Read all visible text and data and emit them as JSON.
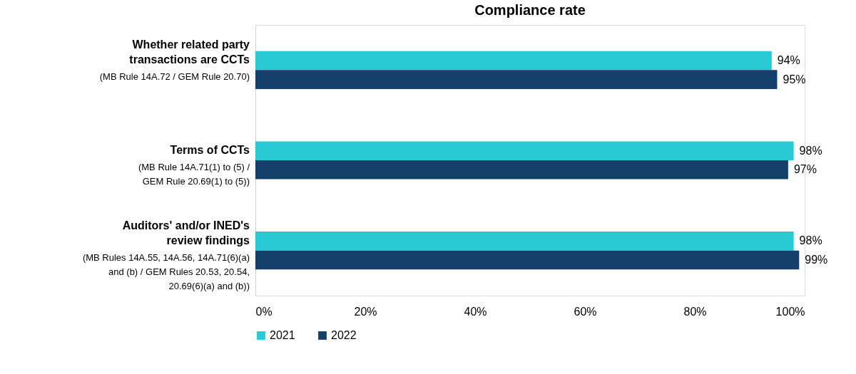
{
  "chart_data": {
    "type": "bar",
    "orientation": "horizontal",
    "title": "Compliance rate",
    "categories": [
      "Whether related party\ntransactions are CCTs",
      "Terms of CCTs",
      "Auditors' and/or INED's\nreview findings"
    ],
    "annotations": [
      "(MB Rule 14A.72 / GEM Rule 20.70)",
      "(MB Rule 14A.71(1) to (5) /\nGEM Rule 20.69(1) to (5))",
      "(MB Rules 14A.55, 14A.56, 14A.71(6)(a)\nand (b) / GEM Rules 20.53, 20.54,\n20.69(6)(a) and (b))"
    ],
    "series": [
      {
        "name": "2021",
        "color": "#29cad3",
        "values": [
          94,
          98,
          98
        ],
        "value_labels": [
          "94%",
          "98%",
          "98%"
        ]
      },
      {
        "name": "2022",
        "color": "#15406a",
        "values": [
          95,
          97,
          99
        ],
        "value_labels": [
          "95%",
          "97%",
          "99%"
        ]
      }
    ],
    "xlim": [
      0,
      100
    ],
    "xticks": [
      {
        "value": 0,
        "label": "0%"
      },
      {
        "value": 20,
        "label": "20%"
      },
      {
        "value": 40,
        "label": "40%"
      },
      {
        "value": 60,
        "label": "60%"
      },
      {
        "value": 80,
        "label": "80%"
      },
      {
        "value": 100,
        "label": "100%"
      }
    ],
    "grid": false,
    "legend": "bottom"
  }
}
